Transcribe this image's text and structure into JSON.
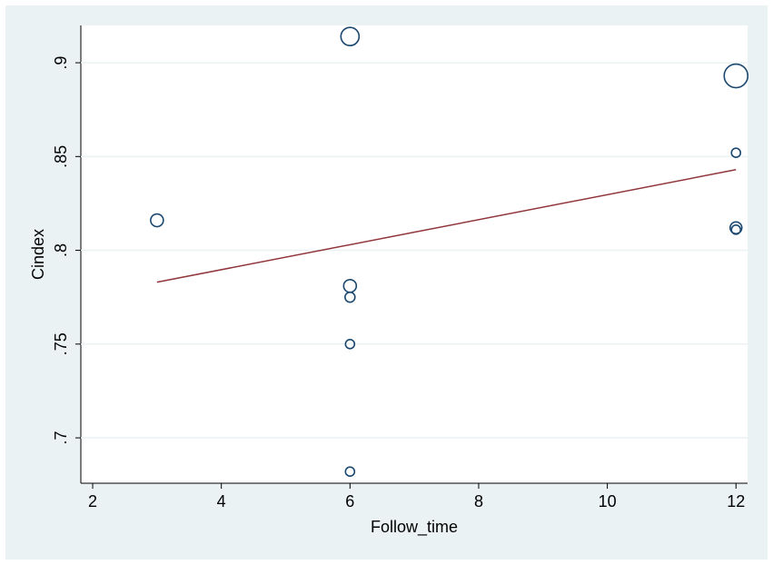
{
  "chart_data": {
    "type": "bubble",
    "x_label": "Follow_time",
    "y_label": "Cindex",
    "x": [
      6,
      12,
      12,
      3,
      12,
      12,
      6,
      6,
      6,
      6
    ],
    "series": [
      {
        "color": "#1a476f",
        "values": [
          0.914,
          0.893,
          0.852,
          0.816,
          0.812,
          0.811,
          0.781,
          0.775,
          0.75,
          0.682
        ],
        "sizes": [
          100,
          169,
          25,
          49,
          42,
          25,
          49,
          30,
          25,
          25
        ]
      }
    ],
    "fit_line": {
      "x": [
        3,
        12
      ],
      "values": [
        0.783,
        0.843
      ],
      "color": "#90353b"
    },
    "xlim": [
      1.816,
      12.18
    ],
    "ylim": [
      0.6758,
      0.9199
    ],
    "xticks": [
      2,
      4,
      6,
      8,
      10,
      12
    ],
    "yticks": [
      {
        "value": 0.7,
        "label": ".7"
      },
      {
        "value": 0.75,
        "label": ".75"
      },
      {
        "value": 0.8,
        "label": ".8"
      },
      {
        "value": 0.85,
        "label": ".85"
      },
      {
        "value": 0.9,
        "label": ".9"
      }
    ],
    "grid": true
  }
}
